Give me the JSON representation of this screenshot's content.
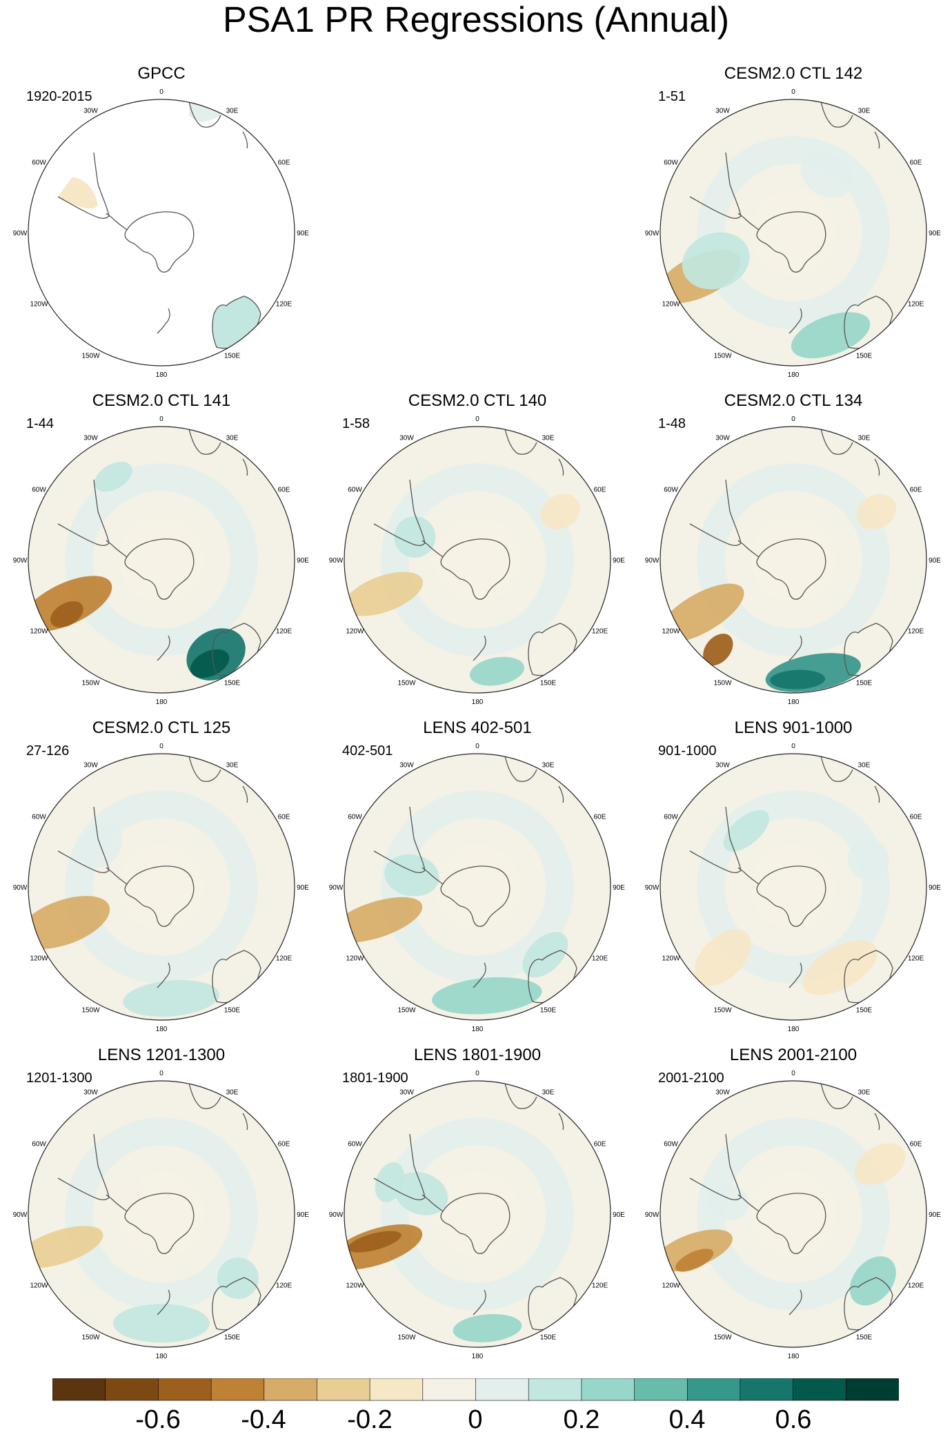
{
  "title": "PSA1 PR Regressions (Annual)",
  "lon_labels": [
    "0",
    "30E",
    "60E",
    "90E",
    "120E",
    "150E",
    "180",
    "150W",
    "120W",
    "90W",
    "60W",
    "30W"
  ],
  "colors": {
    "palette": [
      "#5a3510",
      "#7d4913",
      "#9d5f1d",
      "#bf8234",
      "#d7ac68",
      "#e9ce94",
      "#f6e7c7",
      "#f5f1e6",
      "#e3efec",
      "#c2e7e0",
      "#96d7c9",
      "#67bcac",
      "#36978b",
      "#17766c",
      "#035a4c",
      "#003d31"
    ],
    "ocean_zero": "#f4f1e6",
    "coast": "#555555",
    "circle": "#222222"
  },
  "panels": [
    {
      "title": "GPCC",
      "subtitle": "1920-2015",
      "kind": "obs"
    },
    {
      "title": "CESM2.0 CTL 142",
      "subtitle": "1-51",
      "kind": "model"
    },
    {
      "title": "CESM2.0 CTL 141",
      "subtitle": "1-44",
      "kind": "model"
    },
    {
      "title": "CESM2.0 CTL 140",
      "subtitle": "1-58",
      "kind": "model"
    },
    {
      "title": "CESM2.0 CTL 134",
      "subtitle": "1-48",
      "kind": "model"
    },
    {
      "title": "CESM2.0 CTL 125",
      "subtitle": "27-126",
      "kind": "model"
    },
    {
      "title": "LENS 402-501",
      "subtitle": "402-501",
      "kind": "model"
    },
    {
      "title": "LENS 901-1000",
      "subtitle": "901-1000",
      "kind": "model"
    },
    {
      "title": "LENS 1201-1300",
      "subtitle": "1201-1300",
      "kind": "model"
    },
    {
      "title": "LENS 1801-1900",
      "subtitle": "1801-1900",
      "kind": "model"
    },
    {
      "title": "LENS 2001-2100",
      "subtitle": "2001-2100",
      "kind": "model"
    }
  ],
  "colorbar": {
    "labels": [
      "-0.6",
      "-0.4",
      "-0.2",
      "0",
      "0.2",
      "0.4",
      "0.6"
    ],
    "levels": [
      -0.7,
      -0.6,
      -0.5,
      -0.4,
      -0.3,
      -0.2,
      -0.1,
      0,
      0.1,
      0.2,
      0.3,
      0.4,
      0.5,
      0.6,
      0.7
    ]
  }
}
